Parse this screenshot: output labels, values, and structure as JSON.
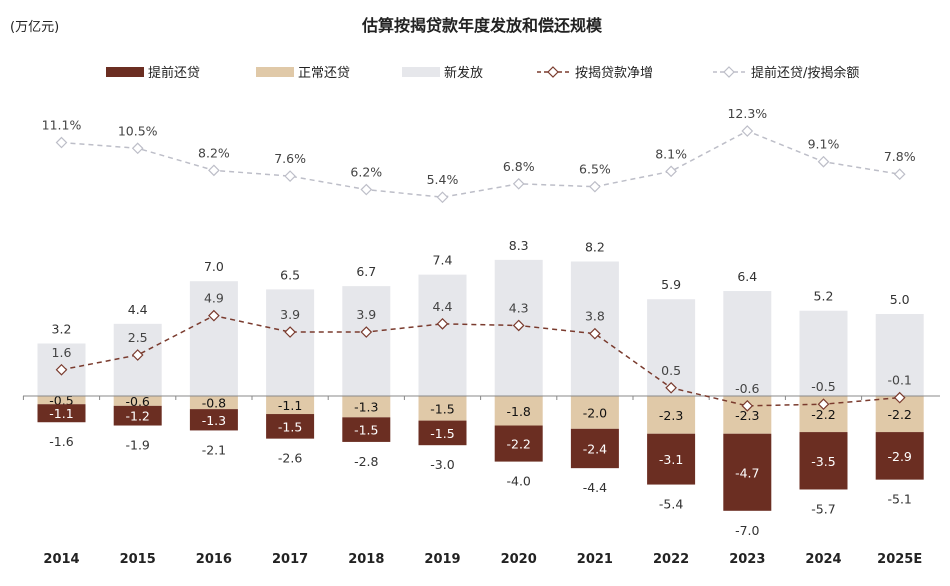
{
  "chart_data": {
    "type": "bar",
    "title": "估算按揭贷款年度发放和偿还规模",
    "unit_label": "(万亿元)",
    "categories": [
      "2014",
      "2015",
      "2016",
      "2017",
      "2018",
      "2019",
      "2020",
      "2021",
      "2022",
      "2023",
      "2024",
      "2025E"
    ],
    "series": [
      {
        "name": "提前还贷",
        "kind": "bar-stacked-negative",
        "color": "#6B2E22",
        "values": [
          -1.1,
          -1.2,
          -1.3,
          -1.5,
          -1.5,
          -1.5,
          -2.2,
          -2.4,
          -3.1,
          -4.7,
          -3.5,
          -2.9
        ]
      },
      {
        "name": "正常还贷",
        "kind": "bar-stacked-negative",
        "color": "#E0C9A8",
        "values": [
          -0.5,
          -0.6,
          -0.8,
          -1.1,
          -1.3,
          -1.5,
          -1.8,
          -2.0,
          -2.3,
          -2.3,
          -2.2,
          -2.2
        ]
      },
      {
        "name": "新发放",
        "kind": "bar",
        "color": "#E6E7EB",
        "values": [
          3.2,
          4.4,
          7.0,
          6.5,
          6.7,
          7.4,
          8.3,
          8.2,
          5.9,
          6.4,
          5.2,
          5.0
        ]
      },
      {
        "name": "按揭贷款净增",
        "kind": "line-dashed",
        "color": "#7A3B2E",
        "values": [
          1.6,
          2.5,
          4.9,
          3.9,
          3.9,
          4.4,
          4.3,
          3.8,
          0.5,
          -0.6,
          -0.5,
          -0.1
        ]
      },
      {
        "name": "提前还贷/按揭余额",
        "kind": "line-dashed-percent",
        "color": "#BDBEC8",
        "values": [
          11.1,
          10.5,
          8.2,
          7.6,
          6.2,
          5.4,
          6.8,
          6.5,
          8.1,
          12.3,
          9.1,
          7.8
        ]
      }
    ],
    "repayment_totals": [
      -1.6,
      -1.9,
      -2.1,
      -2.6,
      -2.8,
      -3.0,
      -4.0,
      -4.4,
      -5.4,
      -7.0,
      -5.7,
      -5.1
    ],
    "legend_placement": "top",
    "grid": false
  }
}
